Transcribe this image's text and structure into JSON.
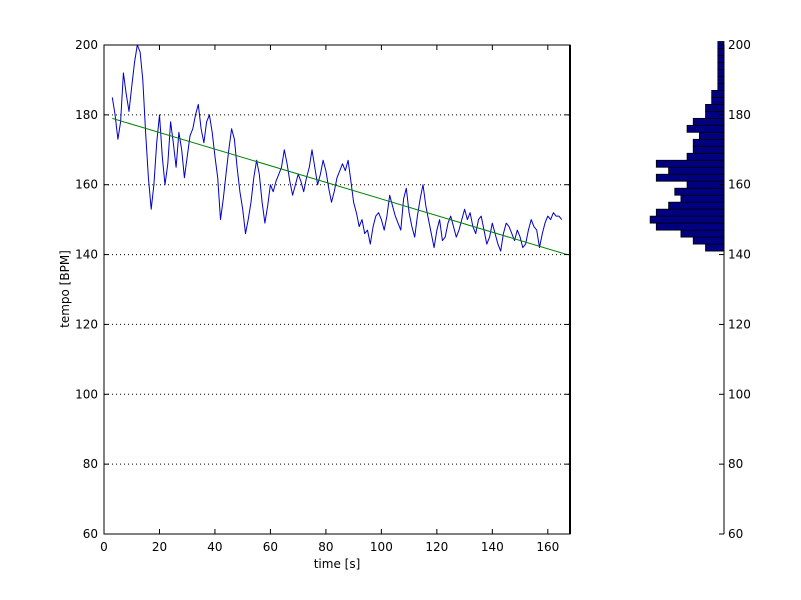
{
  "chart_data": [
    {
      "type": "line",
      "xlabel": "time [s]",
      "ylabel": "tempo [BPM]",
      "xlim": [
        0,
        168
      ],
      "ylim": [
        60,
        200
      ],
      "xticks": [
        0,
        20,
        40,
        60,
        80,
        100,
        120,
        140,
        160
      ],
      "yticks": [
        60,
        80,
        100,
        120,
        140,
        160,
        180,
        200
      ],
      "ygrid": "dotted",
      "series": [
        {
          "color": "#0000cc",
          "x": [
            3,
            4,
            5,
            6,
            7,
            8,
            9,
            10,
            11,
            12,
            13,
            14,
            15,
            16,
            17,
            18,
            19,
            20,
            21,
            22,
            23,
            24,
            25,
            26,
            27,
            28,
            29,
            30,
            31,
            32,
            33,
            34,
            35,
            36,
            37,
            38,
            39,
            40,
            41,
            42,
            43,
            44,
            45,
            46,
            47,
            48,
            49,
            50,
            51,
            52,
            53,
            54,
            55,
            56,
            57,
            58,
            59,
            60,
            61,
            62,
            63,
            64,
            65,
            66,
            67,
            68,
            69,
            70,
            71,
            72,
            73,
            74,
            75,
            76,
            77,
            78,
            79,
            80,
            81,
            82,
            83,
            84,
            85,
            86,
            87,
            88,
            89,
            90,
            91,
            92,
            93,
            94,
            95,
            96,
            97,
            98,
            99,
            100,
            101,
            102,
            103,
            104,
            105,
            106,
            107,
            108,
            109,
            110,
            111,
            112,
            113,
            114,
            115,
            116,
            117,
            118,
            119,
            120,
            121,
            122,
            123,
            124,
            125,
            126,
            127,
            128,
            129,
            130,
            131,
            132,
            133,
            134,
            135,
            136,
            137,
            138,
            139,
            140,
            141,
            142,
            143,
            144,
            145,
            146,
            147,
            148,
            149,
            150,
            151,
            152,
            153,
            154,
            155,
            156,
            157,
            158,
            159,
            160,
            161,
            162,
            163,
            164,
            165
          ],
          "values": [
            185,
            180,
            173,
            178,
            192,
            186,
            181,
            188,
            195,
            200,
            198,
            190,
            175,
            162,
            153,
            160,
            172,
            180,
            168,
            160,
            166,
            178,
            172,
            165,
            175,
            170,
            162,
            168,
            174,
            176,
            180,
            183,
            176,
            172,
            178,
            180,
            175,
            168,
            162,
            150,
            156,
            163,
            170,
            176,
            173,
            165,
            158,
            153,
            146,
            150,
            155,
            162,
            167,
            163,
            155,
            149,
            154,
            160,
            158,
            161,
            163,
            165,
            170,
            166,
            161,
            157,
            160,
            163,
            161,
            158,
            162,
            165,
            170,
            165,
            160,
            163,
            167,
            164,
            159,
            155,
            158,
            162,
            164,
            166,
            164,
            167,
            161,
            155,
            152,
            148,
            150,
            146,
            147,
            143,
            148,
            151,
            152,
            150,
            147,
            151,
            157,
            154,
            151,
            149,
            147,
            156,
            159,
            152,
            148,
            145,
            151,
            156,
            160,
            154,
            150,
            146,
            142,
            147,
            150,
            144,
            145,
            149,
            151,
            148,
            145,
            147,
            150,
            153,
            150,
            152,
            148,
            146,
            150,
            151,
            147,
            143,
            145,
            149,
            146,
            143,
            141,
            146,
            149,
            148,
            146,
            144,
            147,
            145,
            142,
            143,
            147,
            150,
            148,
            147,
            142,
            146,
            149,
            151,
            150,
            152,
            151,
            151,
            150
          ]
        },
        {
          "color": "#008000",
          "x": [
            3,
            167
          ],
          "values": [
            179,
            140
          ]
        }
      ]
    },
    {
      "type": "bar",
      "orientation": "horizontal",
      "ylim": [
        60,
        200
      ],
      "yticks": [
        60,
        80,
        100,
        120,
        140,
        160,
        180,
        200
      ],
      "bar_color": "#000080",
      "bins_low": [
        141,
        143,
        145,
        147,
        149,
        151,
        153,
        155,
        157,
        159,
        161,
        163,
        165,
        167,
        169,
        171,
        173,
        175,
        177,
        179,
        181,
        183,
        185,
        187,
        189,
        191,
        193,
        195,
        197,
        199
      ],
      "bin_width": 2,
      "values": [
        3,
        5,
        7,
        11,
        12,
        11,
        9,
        7,
        8,
        6,
        11,
        9,
        11,
        6,
        5,
        5,
        4,
        6,
        5,
        3,
        3,
        2,
        2,
        1,
        1,
        1,
        1,
        1,
        1,
        1
      ],
      "xmax": 13
    }
  ]
}
